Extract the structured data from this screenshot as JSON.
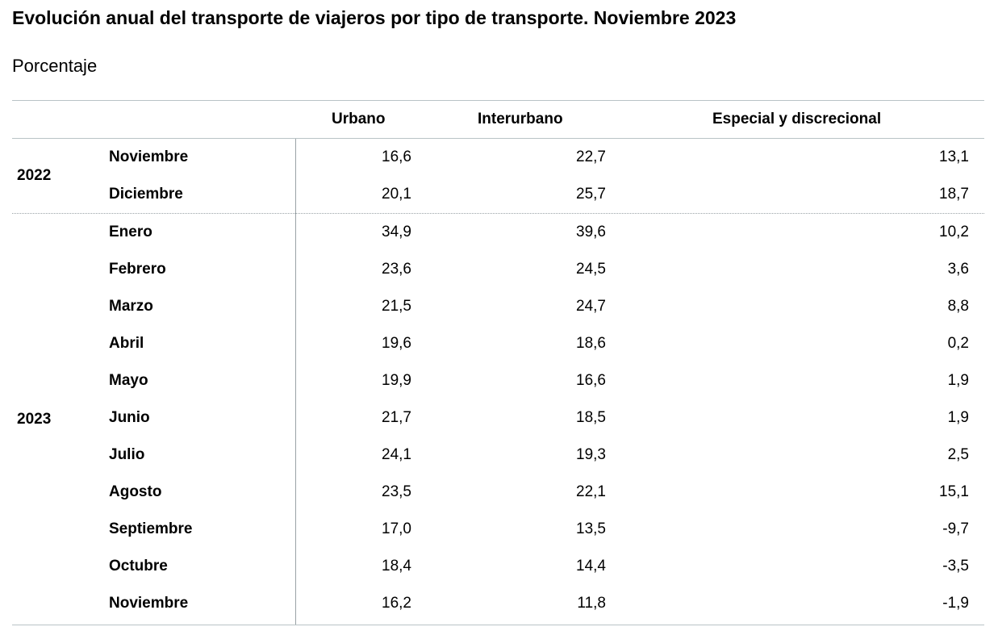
{
  "title": "Evolución anual del transporte de viajeros por tipo de transporte. Noviembre 2023",
  "subtitle": "Porcentaje",
  "table": {
    "columns": [
      "Urbano",
      "Interurbano",
      "Especial y discrecional"
    ],
    "groups": [
      {
        "year": "2022",
        "rows": [
          {
            "month": "Noviembre",
            "urbano": "16,6",
            "interurbano": "22,7",
            "especial": "13,1"
          },
          {
            "month": "Diciembre",
            "urbano": "20,1",
            "interurbano": "25,7",
            "especial": "18,7"
          }
        ]
      },
      {
        "year": "2023",
        "rows": [
          {
            "month": "Enero",
            "urbano": "34,9",
            "interurbano": "39,6",
            "especial": "10,2"
          },
          {
            "month": "Febrero",
            "urbano": "23,6",
            "interurbano": "24,5",
            "especial": "3,6"
          },
          {
            "month": "Marzo",
            "urbano": "21,5",
            "interurbano": "24,7",
            "especial": "8,8"
          },
          {
            "month": "Abril",
            "urbano": "19,6",
            "interurbano": "18,6",
            "especial": "0,2"
          },
          {
            "month": "Mayo",
            "urbano": "19,9",
            "interurbano": "16,6",
            "especial": "1,9"
          },
          {
            "month": "Junio",
            "urbano": "21,7",
            "interurbano": "18,5",
            "especial": "1,9"
          },
          {
            "month": "Julio",
            "urbano": "24,1",
            "interurbano": "19,3",
            "especial": "2,5"
          },
          {
            "month": "Agosto",
            "urbano": "23,5",
            "interurbano": "22,1",
            "especial": "15,1"
          },
          {
            "month": "Septiembre",
            "urbano": "17,0",
            "interurbano": "13,5",
            "especial": "-9,7"
          },
          {
            "month": "Octubre",
            "urbano": "18,4",
            "interurbano": "14,4",
            "especial": "-3,5"
          },
          {
            "month": "Noviembre",
            "urbano": "16,2",
            "interurbano": "11,8",
            "especial": "-1,9"
          }
        ]
      }
    ]
  }
}
